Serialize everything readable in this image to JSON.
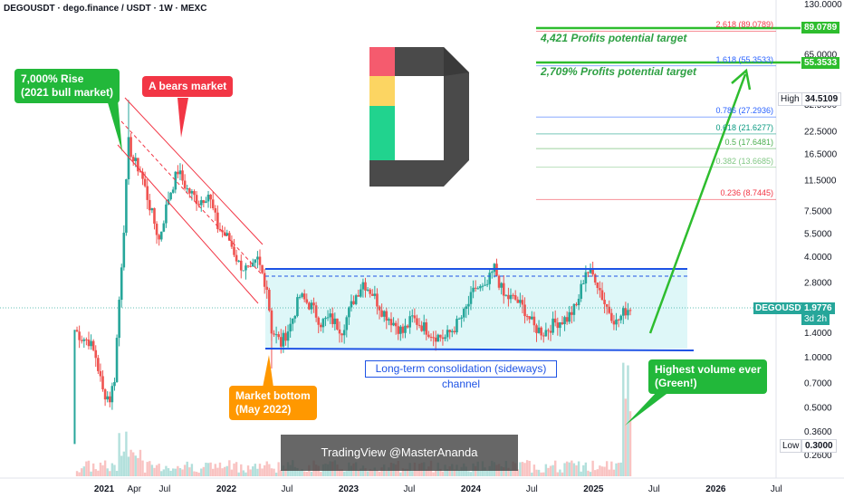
{
  "header": {
    "title": "DEGOUSDT · dego.finance / USDT · 1W · MEXC"
  },
  "colors": {
    "up": "#26a69a",
    "down": "#ef5350",
    "green_ann": "#2ea043",
    "red_ann": "#f23645",
    "orange_ann": "#ff9800",
    "channel": "#1e53e5",
    "arrow": "#2ebd2e"
  },
  "annotations": {
    "rise": [
      "7,000% Rise",
      "(2021 bull market)"
    ],
    "bears": "A bears market",
    "bottom": [
      "Market bottom",
      "(May 2022)"
    ],
    "channel": "Long-term consolidation (sideways) channel",
    "volume": [
      "Highest volume ever",
      "(Green!)"
    ],
    "target1": "4,421 Profits potential target",
    "target2": "2,709% Profits potential target",
    "watermark": "TradingView @MasterAnanda"
  },
  "labels": {
    "high_label": "High",
    "high_value": "34.5109",
    "low_label": "Low",
    "low_value": "0.3000",
    "symbol": "DEGOUSDT",
    "price": "1.9776",
    "countdown": "3d 2h",
    "target_box_1": "89.0789",
    "target_box_2": "55.3533"
  },
  "fib_levels": [
    {
      "label": "2.618 (89.0789)",
      "color": "#f23645"
    },
    {
      "label": "1.618 (55.3533)",
      "color": "#2962ff"
    },
    {
      "label": "0.786 (27.2936)",
      "color": "#2962ff"
    },
    {
      "label": "0.618 (21.6277)",
      "color": "#089981"
    },
    {
      "label": "0.5 (17.6481)",
      "color": "#4caf50"
    },
    {
      "label": "0.382 (13.6685)",
      "color": "#81c784"
    },
    {
      "label": "0.236 (8.7445)",
      "color": "#f23645"
    }
  ],
  "chart_data": {
    "type": "candlestick",
    "title": "DEGOUSDT · dego.finance / USDT · 1W · MEXC",
    "y_scale": "log",
    "y_ticks": [
      "130.0000",
      "65.0000",
      "32.5000",
      "22.5000",
      "16.5000",
      "11.5000",
      "7.5000",
      "5.5000",
      "4.0000",
      "2.8000",
      "2.0000",
      "1.4000",
      "1.0000",
      "0.7000",
      "0.5000",
      "0.3600",
      "0.2600"
    ],
    "x_ticks": [
      "2021",
      "Apr",
      "Jul",
      "2022",
      "Jul",
      "2023",
      "Jul",
      "2024",
      "Jul",
      "2025",
      "Jul",
      "2026",
      "Jul"
    ],
    "price_path": [
      [
        "2020-10-05",
        1.45
      ],
      [
        "2020-10-26",
        1.3
      ],
      [
        "2020-11-16",
        1.25
      ],
      [
        "2020-12-07",
        1.0
      ],
      [
        "2020-12-28",
        0.62
      ],
      [
        "2021-01-18",
        0.56
      ],
      [
        "2021-02-01",
        0.75
      ],
      [
        "2021-02-15",
        2.2
      ],
      [
        "2021-03-01",
        6.0
      ],
      [
        "2021-03-15",
        19.0
      ],
      [
        "2021-03-29",
        15.0
      ],
      [
        "2021-04-19",
        13.0
      ],
      [
        "2021-05-17",
        8.0
      ],
      [
        "2021-06-14",
        5.0
      ],
      [
        "2021-07-12",
        9.0
      ],
      [
        "2021-08-09",
        13.0
      ],
      [
        "2021-09-06",
        10.0
      ],
      [
        "2021-10-11",
        8.5
      ],
      [
        "2021-11-08",
        9.5
      ],
      [
        "2021-12-06",
        6.0
      ],
      [
        "2022-01-10",
        5.0
      ],
      [
        "2022-02-07",
        3.6
      ],
      [
        "2022-03-14",
        3.2
      ],
      [
        "2022-04-04",
        3.8
      ],
      [
        "2022-05-02",
        2.6
      ],
      [
        "2022-05-16",
        1.45
      ],
      [
        "2022-06-13",
        1.2
      ],
      [
        "2022-07-11",
        1.55
      ],
      [
        "2022-08-08",
        2.3
      ],
      [
        "2022-09-12",
        2.0
      ],
      [
        "2022-10-10",
        1.6
      ],
      [
        "2022-11-07",
        1.7
      ],
      [
        "2022-12-12",
        1.45
      ],
      [
        "2023-01-16",
        2.2
      ],
      [
        "2023-02-13",
        2.8
      ],
      [
        "2023-03-13",
        2.4
      ],
      [
        "2023-04-10",
        1.9
      ],
      [
        "2023-05-15",
        1.6
      ],
      [
        "2023-06-12",
        1.4
      ],
      [
        "2023-07-10",
        1.7
      ],
      [
        "2023-08-14",
        1.5
      ],
      [
        "2023-09-11",
        1.35
      ],
      [
        "2023-10-16",
        1.3
      ],
      [
        "2023-11-13",
        1.5
      ],
      [
        "2023-12-11",
        1.8
      ],
      [
        "2024-01-15",
        2.6
      ],
      [
        "2024-02-12",
        2.5
      ],
      [
        "2024-03-11",
        3.4
      ],
      [
        "2024-04-08",
        2.3
      ],
      [
        "2024-05-13",
        2.2
      ],
      [
        "2024-06-10",
        1.9
      ],
      [
        "2024-07-08",
        1.5
      ],
      [
        "2024-08-05",
        1.4
      ],
      [
        "2024-09-09",
        1.6
      ],
      [
        "2024-10-14",
        1.7
      ],
      [
        "2024-11-11",
        2.0
      ],
      [
        "2024-12-09",
        3.3
      ],
      [
        "2025-01-06",
        3.0
      ],
      [
        "2025-02-03",
        2.1
      ],
      [
        "2025-03-10",
        1.6
      ],
      [
        "2025-04-07",
        1.9
      ],
      [
        "2025-04-21",
        1.9776
      ]
    ],
    "channel": {
      "top": 3.2,
      "mid": 2.85,
      "bottom": 1.12
    },
    "high": 34.5109,
    "low": 0.3,
    "last_price": 1.9776,
    "targets": [
      89.0789,
      55.3533
    ]
  }
}
